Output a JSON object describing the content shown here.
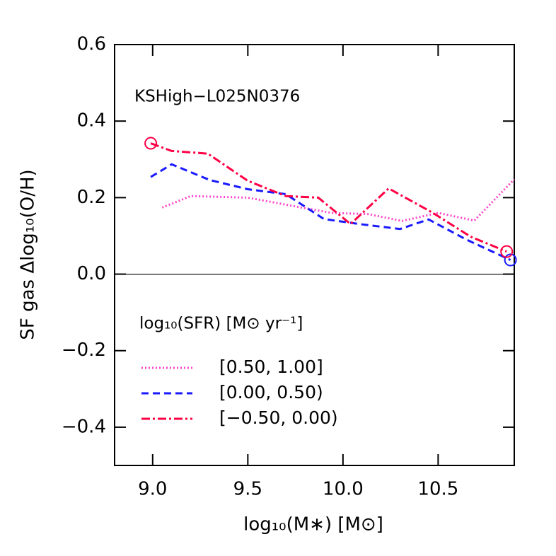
{
  "chart_data": {
    "type": "line",
    "annotation": "KSHigh−L025N0376",
    "x_label": "log₁₀(M∗)  [M⊙]",
    "y_label": "SF gas  Δlog₁₀(O/H)",
    "legend_title": "log₁₀(SFR)  [M⊙ yr⁻¹]",
    "xlim": [
      8.8,
      10.9
    ],
    "xticks": [
      {
        "value": 9.0,
        "label": "9.0"
      },
      9.5,
      {
        "value": 10.0,
        "label": "10.0"
      },
      10.5
    ],
    "ylim": [
      -0.5,
      0.6
    ],
    "yticks": [
      {
        "value": -0.4,
        "label": "−0.4"
      },
      {
        "value": -0.2,
        "label": "−0.2"
      },
      {
        "value": 0.0,
        "label": "0.0"
      },
      0.2,
      0.4,
      0.6
    ],
    "series": [
      {
        "name": "[0.50,  1.00]",
        "color": "#ff44cc",
        "dash": "2,3",
        "x": [
          9.05,
          9.2,
          9.5,
          9.76,
          9.94,
          10.13,
          10.31,
          10.5,
          10.69,
          10.9
        ],
        "values": [
          0.174,
          0.204,
          0.2,
          0.176,
          0.16,
          0.157,
          0.139,
          0.16,
          0.14,
          0.248
        ],
        "circle_markers": []
      },
      {
        "name": "[0.00,  0.50)",
        "color": "#1a1aff",
        "dash": "10,6",
        "x": [
          8.99,
          9.1,
          9.3,
          9.5,
          9.7,
          9.9,
          10.1,
          10.3,
          10.45,
          10.65,
          10.88
        ],
        "values": [
          0.254,
          0.287,
          0.246,
          0.222,
          0.209,
          0.144,
          0.13,
          0.118,
          0.143,
          0.09,
          0.037
        ],
        "circle_markers": [
          10
        ]
      },
      {
        "name": "[−0.50,  0.00)",
        "color": "#ff0044",
        "dash": "12,4,3,4",
        "x": [
          8.99,
          9.1,
          9.29,
          9.5,
          9.7,
          9.87,
          10.04,
          10.24,
          10.47,
          10.67,
          10.86
        ],
        "values": [
          0.342,
          0.322,
          0.315,
          0.244,
          0.204,
          0.2,
          0.131,
          0.224,
          0.161,
          0.098,
          0.059
        ],
        "circle_markers": [
          0,
          10
        ]
      }
    ]
  }
}
